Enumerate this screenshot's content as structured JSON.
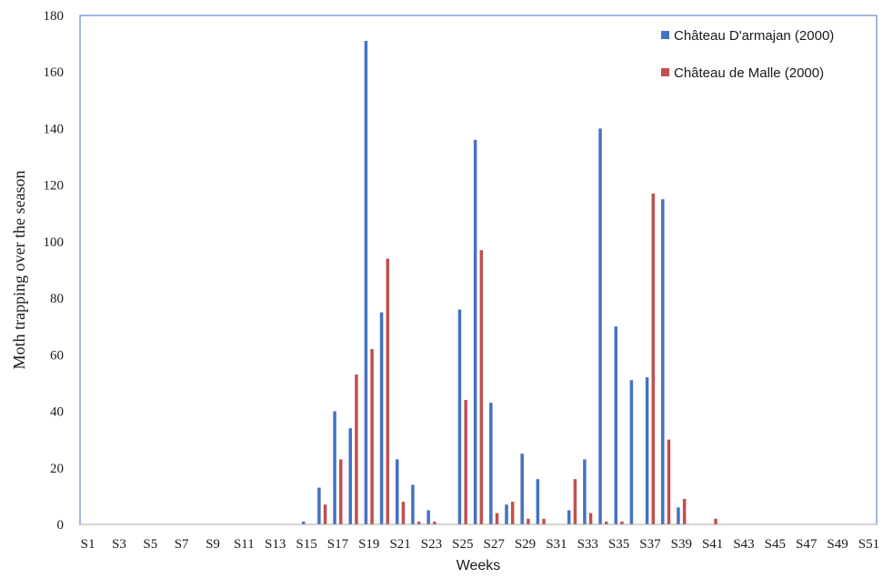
{
  "chart_data": {
    "type": "bar",
    "title": "",
    "xlabel": "Weeks",
    "ylabel": "Moth trapping over the season",
    "ylim": [
      0,
      180
    ],
    "yticks": [
      0,
      20,
      40,
      60,
      80,
      100,
      120,
      140,
      160,
      180
    ],
    "grid": false,
    "legend_position": "top-right",
    "categories": [
      "S1",
      "S2",
      "S3",
      "S4",
      "S5",
      "S6",
      "S7",
      "S8",
      "S9",
      "S10",
      "S11",
      "S12",
      "S13",
      "S14",
      "S15",
      "S16",
      "S17",
      "S18",
      "S19",
      "S20",
      "S21",
      "S22",
      "S23",
      "S24",
      "S25",
      "S26",
      "S27",
      "S28",
      "S29",
      "S30",
      "S31",
      "S32",
      "S33",
      "S34",
      "S35",
      "S36",
      "S37",
      "S38",
      "S39",
      "S40",
      "S41",
      "S42",
      "S43",
      "S44",
      "S45",
      "S46",
      "S47",
      "S48",
      "S49",
      "S50",
      "S51"
    ],
    "visible_tick_labels": [
      "S1",
      "S3",
      "S5",
      "S7",
      "S9",
      "S11",
      "S13",
      "S15",
      "S17",
      "S19",
      "S21",
      "S23",
      "S25",
      "S27",
      "S29",
      "S31",
      "S33",
      "S35",
      "S37",
      "S39",
      "S41",
      "S43",
      "S45",
      "S47",
      "S49",
      "S51"
    ],
    "series": [
      {
        "name": "Château D'armajan (2000)",
        "color": "#4472C4",
        "values": [
          0,
          0,
          0,
          0,
          0,
          0,
          0,
          0,
          0,
          0,
          0,
          0,
          0,
          0,
          1,
          13,
          40,
          34,
          171,
          75,
          23,
          14,
          5,
          0,
          76,
          136,
          43,
          7,
          25,
          16,
          0,
          5,
          23,
          140,
          70,
          51,
          52,
          115,
          6,
          0,
          0,
          0,
          0,
          0,
          0,
          0,
          0,
          0,
          0,
          0,
          0
        ]
      },
      {
        "name": "Château de Malle (2000)",
        "color": "#C0504D",
        "values": [
          0,
          0,
          0,
          0,
          0,
          0,
          0,
          0,
          0,
          0,
          0,
          0,
          0,
          0,
          0,
          7,
          23,
          53,
          62,
          94,
          8,
          1,
          1,
          0,
          44,
          97,
          4,
          8,
          2,
          2,
          0,
          16,
          4,
          1,
          1,
          0,
          117,
          30,
          9,
          0,
          2,
          0,
          0,
          0,
          0,
          0,
          0,
          0,
          0,
          0,
          0
        ]
      }
    ]
  }
}
